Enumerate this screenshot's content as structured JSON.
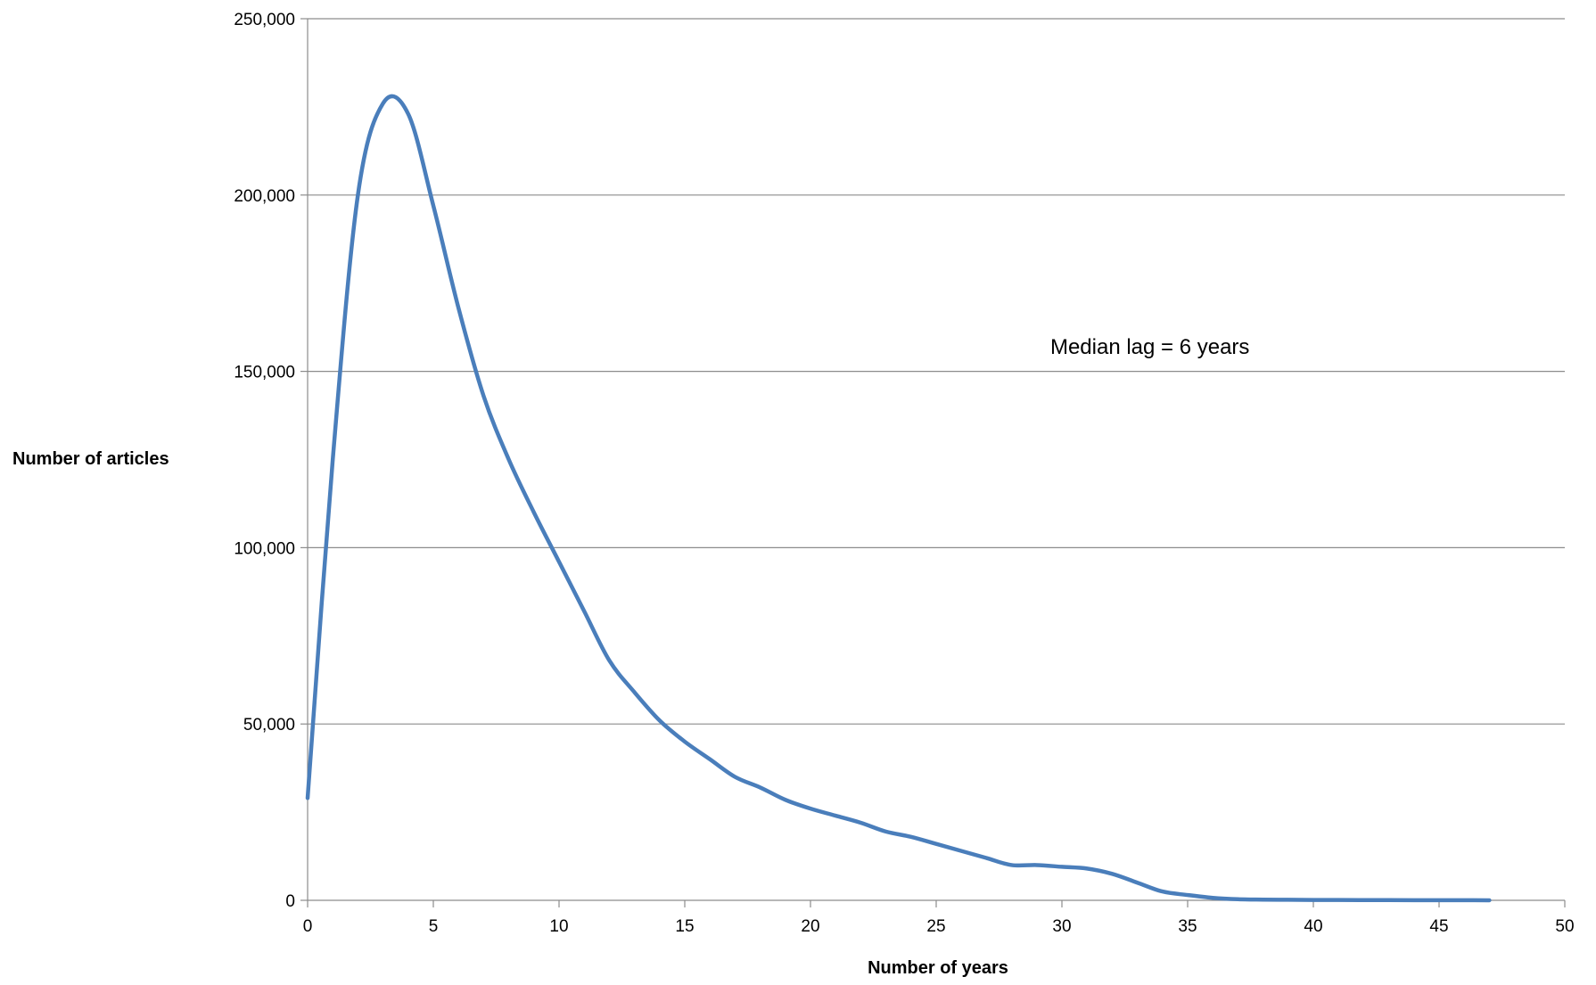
{
  "chart_data": {
    "type": "line",
    "xlabel": "Number of years",
    "ylabel": "Number of articles",
    "xlim": [
      0,
      50
    ],
    "ylim": [
      0,
      250000
    ],
    "xticks": [
      {
        "value": 0,
        "label": "0"
      },
      {
        "value": 5,
        "label": "5"
      },
      {
        "value": 10,
        "label": "10"
      },
      {
        "value": 15,
        "label": "15"
      },
      {
        "value": 20,
        "label": "20"
      },
      {
        "value": 25,
        "label": "25"
      },
      {
        "value": 30,
        "label": "30"
      },
      {
        "value": 35,
        "label": "35"
      },
      {
        "value": 40,
        "label": "40"
      },
      {
        "value": 45,
        "label": "45"
      },
      {
        "value": 50,
        "label": "50"
      }
    ],
    "yticks": [
      {
        "value": 0,
        "label": "0"
      },
      {
        "value": 50000,
        "label": "50,000"
      },
      {
        "value": 100000,
        "label": "100,000"
      },
      {
        "value": 150000,
        "label": "150,000"
      },
      {
        "value": 200000,
        "label": "200,000"
      },
      {
        "value": 250000,
        "label": "250,000"
      }
    ],
    "grid": "horizontal",
    "legend": "none",
    "annotation": {
      "text": "Median lag = 6 years",
      "x": 33.5,
      "y": 157000
    },
    "series": [
      {
        "color": "#4a7ebb",
        "x": [
          0,
          1,
          2,
          3,
          4,
          5,
          6,
          7,
          8,
          9,
          10,
          11,
          12,
          13,
          14,
          15,
          16,
          17,
          18,
          19,
          20,
          21,
          22,
          23,
          24,
          25,
          26,
          27,
          28,
          29,
          30,
          31,
          32,
          33,
          34,
          35,
          36,
          37,
          38,
          39,
          40,
          41,
          42,
          43,
          44,
          45,
          46,
          47
        ],
        "y": [
          29000,
          125000,
          200000,
          226000,
          223000,
          197000,
          168000,
          143000,
          125000,
          110000,
          96000,
          82000,
          68000,
          59000,
          51000,
          45000,
          40000,
          35000,
          32000,
          28500,
          26000,
          24000,
          22000,
          19500,
          18000,
          16000,
          14000,
          12000,
          10000,
          10000,
          9500,
          9000,
          7500,
          5000,
          2500,
          1500,
          700,
          300,
          200,
          150,
          100,
          80,
          60,
          50,
          40,
          30,
          20,
          10
        ]
      }
    ]
  }
}
